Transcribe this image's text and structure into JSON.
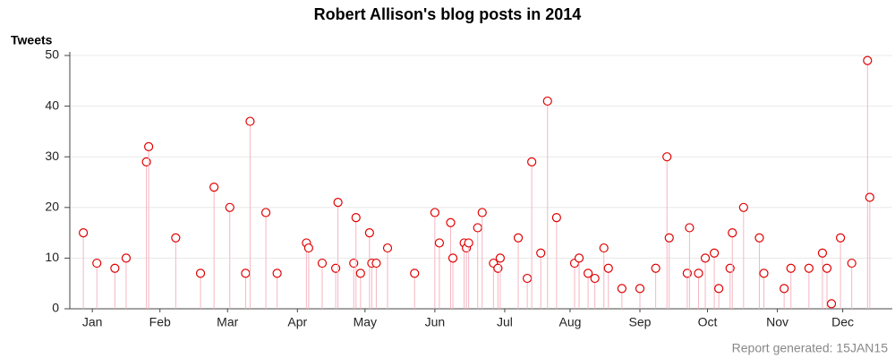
{
  "chart_data": {
    "type": "needle",
    "title": "Robert Allison's blog posts in 2014",
    "y_label": "Tweets",
    "footnote": "Report generated: 15JAN15",
    "x": [
      6,
      12,
      20,
      25,
      34,
      35,
      47,
      58,
      64,
      71,
      78,
      80,
      87,
      92,
      105,
      106,
      112,
      118,
      119,
      126,
      127,
      129,
      133,
      134,
      136,
      141,
      153,
      162,
      164,
      169,
      170,
      175,
      176,
      177,
      181,
      183,
      188,
      190,
      191,
      199,
      203,
      205,
      209,
      212,
      216,
      224,
      226,
      230,
      233,
      237,
      239,
      245,
      253,
      260,
      265,
      266,
      274,
      275,
      279,
      282,
      286,
      288,
      293,
      294,
      299,
      306,
      308,
      317,
      320,
      328,
      334,
      336,
      338,
      342,
      347,
      354,
      355
    ],
    "values": [
      15,
      9,
      8,
      10,
      29,
      32,
      14,
      7,
      24,
      20,
      7,
      37,
      19,
      7,
      13,
      12,
      9,
      8,
      21,
      9,
      18,
      7,
      15,
      9,
      9,
      12,
      7,
      19,
      13,
      17,
      10,
      13,
      12,
      13,
      16,
      19,
      9,
      8,
      10,
      14,
      6,
      29,
      11,
      41,
      18,
      9,
      10,
      7,
      6,
      12,
      8,
      4,
      4,
      8,
      30,
      14,
      7,
      16,
      7,
      10,
      11,
      4,
      8,
      15,
      20,
      14,
      7,
      4,
      8,
      8,
      11,
      8,
      1,
      14,
      9,
      49,
      22
    ],
    "color": "#e00000",
    "needle_color": "#f4b6c2",
    "xlim": [
      0,
      365
    ],
    "xticks": [
      {
        "value": 10,
        "label": "Jan"
      },
      {
        "value": 40,
        "label": "Feb"
      },
      {
        "value": 70,
        "label": "Mar"
      },
      {
        "value": 101,
        "label": "Apr"
      },
      {
        "value": 131,
        "label": "May"
      },
      {
        "value": 162,
        "label": "Jun"
      },
      {
        "value": 193,
        "label": "Jul"
      },
      {
        "value": 222,
        "label": "Aug"
      },
      {
        "value": 253,
        "label": "Sep"
      },
      {
        "value": 283,
        "label": "Oct"
      },
      {
        "value": 314,
        "label": "Nov"
      },
      {
        "value": 343,
        "label": "Dec"
      }
    ],
    "ylim": [
      0,
      50
    ],
    "yticks": [
      0,
      10,
      20,
      30,
      40,
      50
    ],
    "grid": true
  }
}
